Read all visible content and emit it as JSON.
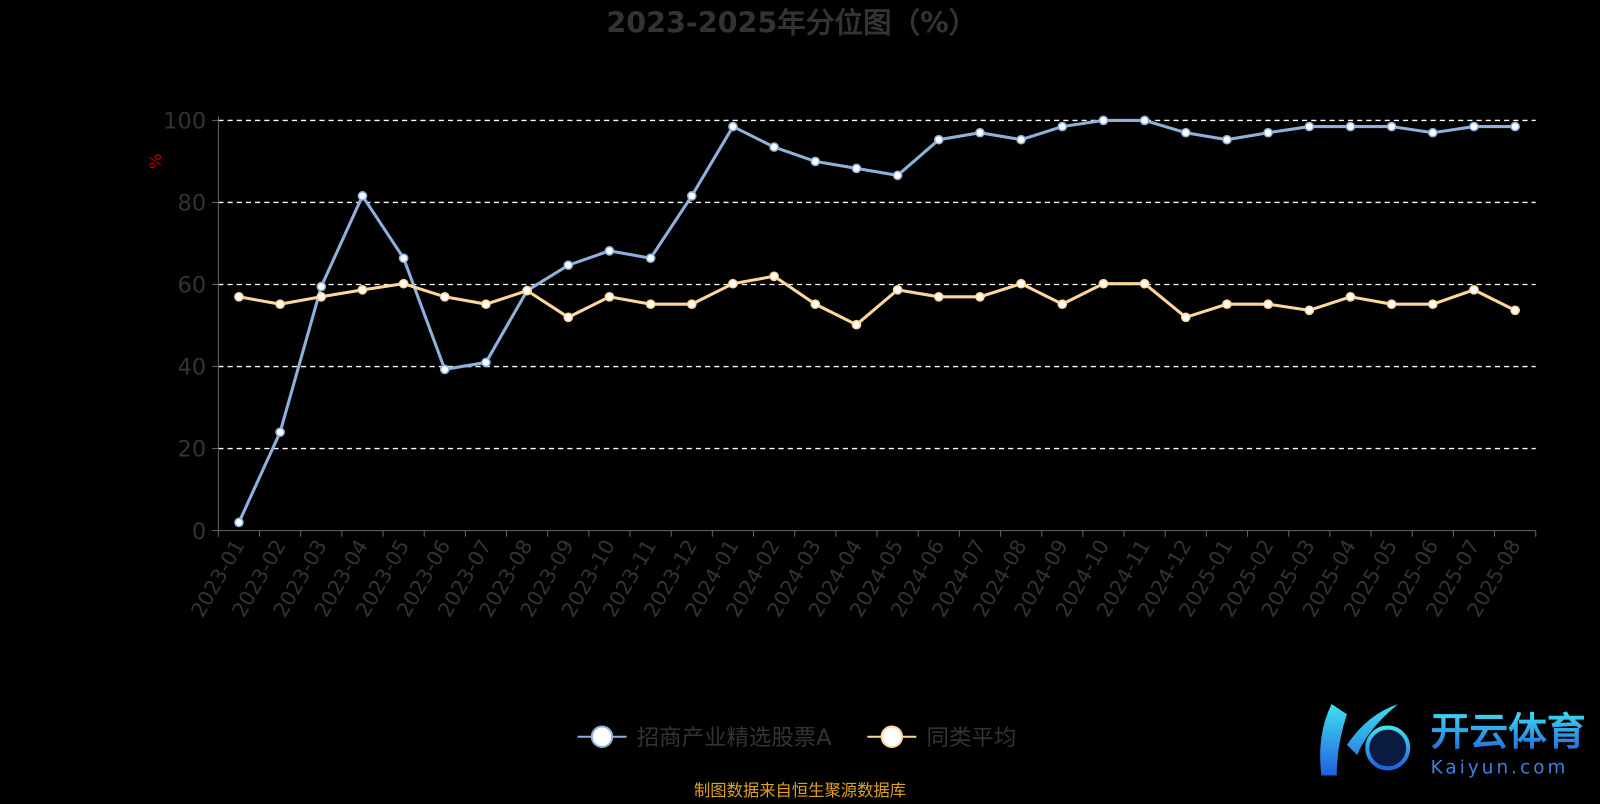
{
  "chart_data": {
    "type": "line",
    "title": "2023-2025年分位图（%）",
    "ylabel": "%",
    "ylim": [
      0,
      100
    ],
    "yticks": [
      0,
      20,
      40,
      60,
      80,
      100
    ],
    "grid": true,
    "legend_position": "bottom",
    "categories": [
      "2023-01",
      "2023-02",
      "2023-03",
      "2023-04",
      "2023-05",
      "2023-06",
      "2023-07",
      "2023-08",
      "2023-09",
      "2023-10",
      "2023-11",
      "2023-12",
      "2024-01",
      "2024-02",
      "2024-03",
      "2024-04",
      "2024-05",
      "2024-06",
      "2024-07",
      "2024-08",
      "2024-09",
      "2024-10",
      "2024-11",
      "2024-12",
      "2025-01",
      "2025-02",
      "2025-03",
      "2025-04",
      "2025-05",
      "2025-06",
      "2025-07",
      "2025-08"
    ],
    "series": [
      {
        "name": "招商产业精选股票A",
        "color": "#8fb0dc",
        "values": [
          2,
          24,
          59.5,
          81.6,
          66.4,
          39.3,
          41,
          58.5,
          64.7,
          68.2,
          66.4,
          81.6,
          98.5,
          93.5,
          90,
          88.3,
          86.6,
          95.3,
          97,
          95.3,
          98.5,
          100,
          100,
          97,
          95.3,
          97,
          98.5,
          98.5,
          98.5,
          97,
          98.5,
          98.5
        ]
      },
      {
        "name": "同类平均",
        "color": "#ffd699",
        "values": [
          57,
          55.2,
          57,
          58.7,
          60.2,
          57,
          55.2,
          58.5,
          52,
          57,
          55.2,
          55.2,
          60.2,
          62,
          55.2,
          50.2,
          58.7,
          57,
          57,
          60.2,
          55.2,
          60.2,
          60.2,
          52,
          55.2,
          55.2,
          53.7,
          57,
          55.2,
          55.2,
          58.7,
          53.7
        ]
      }
    ]
  },
  "source_note": "制图数据来自恒生聚源数据库",
  "logo": {
    "name": "开云体育",
    "sub": "kaiyun.com"
  },
  "colors": {
    "title": "#333333",
    "axis": "#666666",
    "grid": "#ffffff",
    "ylabel": "#cc0000",
    "source": "#e0a020",
    "background": "#000000"
  }
}
